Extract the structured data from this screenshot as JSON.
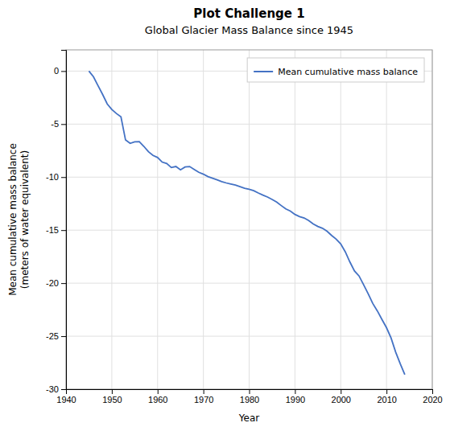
{
  "chart_data": {
    "type": "line",
    "title": "Plot Challenge 1",
    "subtitle": "Global Glacier Mass Balance since 1945",
    "xlabel": "Year",
    "ylabel": "Mean cumulative mass balance\n(meters of water equivalent)",
    "x": [
      1945,
      1946,
      1947,
      1948,
      1949,
      1950,
      1951,
      1952,
      1953,
      1954,
      1955,
      1956,
      1957,
      1958,
      1959,
      1960,
      1961,
      1962,
      1963,
      1964,
      1965,
      1966,
      1967,
      1968,
      1969,
      1970,
      1971,
      1972,
      1973,
      1974,
      1975,
      1976,
      1977,
      1978,
      1979,
      1980,
      1981,
      1982,
      1983,
      1984,
      1985,
      1986,
      1987,
      1988,
      1989,
      1990,
      1991,
      1992,
      1993,
      1994,
      1995,
      1996,
      1997,
      1998,
      1999,
      2000,
      2001,
      2002,
      2003,
      2004,
      2005,
      2006,
      2007,
      2008,
      2009,
      2010,
      2011,
      2012,
      2013,
      2014
    ],
    "series": [
      {
        "name": "Mean cumulative mass balance",
        "color": "#4472c4",
        "values": [
          0.0,
          -0.54,
          -1.38,
          -2.21,
          -3.1,
          -3.62,
          -4.0,
          -4.31,
          -6.5,
          -6.82,
          -6.67,
          -6.65,
          -7.1,
          -7.6,
          -7.95,
          -8.15,
          -8.58,
          -8.72,
          -9.1,
          -9.0,
          -9.32,
          -9.05,
          -9.0,
          -9.28,
          -9.55,
          -9.72,
          -9.95,
          -10.1,
          -10.25,
          -10.42,
          -10.55,
          -10.65,
          -10.75,
          -10.9,
          -11.05,
          -11.15,
          -11.28,
          -11.5,
          -11.7,
          -11.88,
          -12.1,
          -12.35,
          -12.68,
          -13.0,
          -13.2,
          -13.52,
          -13.72,
          -13.85,
          -14.1,
          -14.42,
          -14.65,
          -14.82,
          -15.1,
          -15.5,
          -15.85,
          -16.3,
          -17.05,
          -18.0,
          -18.85,
          -19.32,
          -20.15,
          -21.0,
          -21.92,
          -22.62,
          -23.42,
          -24.2,
          -25.18,
          -26.5,
          -27.6,
          -28.62
        ]
      }
    ],
    "xlim": [
      1940,
      2020
    ],
    "ylim": [
      -30,
      2
    ],
    "xticks": [
      1940,
      1950,
      1960,
      1970,
      1980,
      1990,
      2000,
      2010,
      2020
    ],
    "yticks": [
      0,
      -5,
      -10,
      -15,
      -20,
      -25,
      -30
    ],
    "grid": true,
    "legend": "upper right"
  }
}
